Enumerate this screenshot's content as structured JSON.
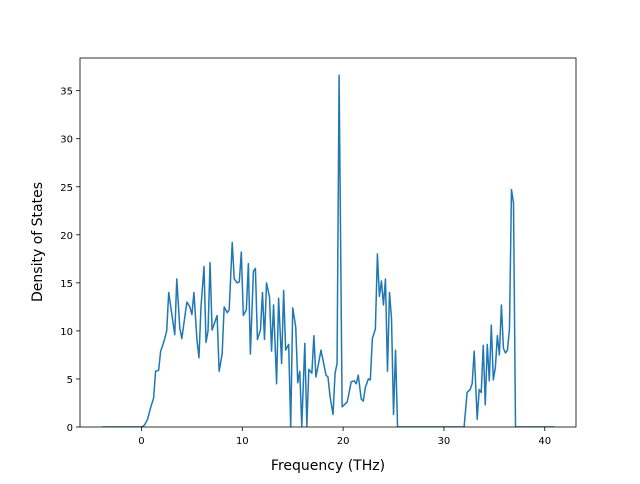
{
  "chart_data": {
    "type": "line",
    "xlabel": "Frequency (THz)",
    "ylabel": "Density of States",
    "x": [
      -3.9,
      0,
      0.3,
      0.6,
      0.9,
      1.2,
      1.4,
      1.7,
      1.9,
      2.2,
      2.5,
      2.7,
      3.0,
      3.3,
      3.5,
      3.8,
      4.0,
      4.3,
      4.5,
      4.8,
      5.0,
      5.2,
      5.5,
      5.7,
      5.9,
      6.2,
      6.4,
      6.6,
      6.8,
      7.0,
      7.3,
      7.5,
      7.7,
      8.0,
      8.2,
      8.5,
      8.7,
      9.0,
      9.2,
      9.5,
      9.7,
      9.9,
      10.1,
      10.4,
      10.6,
      10.8,
      11.1,
      11.3,
      11.5,
      11.8,
      12.0,
      12.2,
      12.4,
      12.7,
      12.9,
      13.1,
      13.4,
      13.6,
      13.9,
      14.1,
      14.3,
      14.6,
      14.8,
      15.0,
      15.3,
      15.5,
      15.7,
      15.9,
      16.2,
      16.4,
      16.6,
      16.9,
      17.1,
      17.3,
      17.6,
      17.8,
      18.0,
      18.3,
      18.5,
      18.7,
      19.0,
      19.2,
      19.4,
      19.6,
      19.9,
      20.1,
      20.4,
      20.6,
      20.8,
      21.1,
      21.3,
      21.5,
      21.8,
      22.0,
      22.2,
      22.5,
      22.7,
      22.9,
      23.2,
      23.4,
      23.6,
      23.8,
      24.0,
      24.2,
      24.4,
      24.6,
      24.8,
      25.0,
      25.2,
      25.4,
      26,
      32,
      32.3,
      32.6,
      32.8,
      33.0,
      33.3,
      33.5,
      33.7,
      33.9,
      34.1,
      34.3,
      34.5,
      34.7,
      34.9,
      35.1,
      35.3,
      35.5,
      35.7,
      35.9,
      36.1,
      36.3,
      36.5,
      36.7,
      36.9,
      37.1,
      41
    ],
    "series": [
      {
        "color": "#1f77b4",
        "values": [
          0,
          0,
          0.2,
          0.8,
          2,
          3,
          5.8,
          5.9,
          7.9,
          8.8,
          10,
          14,
          11.8,
          9.6,
          15.4,
          10.3,
          9.2,
          11.5,
          13,
          12.5,
          11.7,
          14,
          9.1,
          7.2,
          12.5,
          16.7,
          8.8,
          10,
          17.1,
          10.1,
          11,
          11.6,
          5.8,
          7.6,
          12.5,
          11.9,
          12.2,
          19.2,
          15.4,
          15,
          15.1,
          18.2,
          11.6,
          12.2,
          17,
          7.6,
          16.2,
          16.5,
          9.1,
          10.1,
          14,
          9.1,
          15,
          13.5,
          7.9,
          12.7,
          4.5,
          13.4,
          6.6,
          14.2,
          8,
          8.6,
          0,
          12.4,
          10.4,
          4.6,
          5.8,
          0.1,
          8.7,
          0.1,
          6,
          5.6,
          9.5,
          5.2,
          6.8,
          8,
          7,
          5.4,
          5.2,
          3.2,
          1.3,
          5.6,
          6.6,
          36.6,
          2.1,
          2.3,
          2.6,
          3.6,
          4.7,
          4.8,
          4.5,
          5.4,
          2.9,
          2.7,
          4.1,
          5,
          4.9,
          9.2,
          10.2,
          18,
          13.6,
          15.2,
          12.7,
          15.4,
          5.8,
          14,
          11.3,
          1.3,
          8,
          0,
          0,
          0,
          3.6,
          3.9,
          4.5,
          7.9,
          0.8,
          3.9,
          3.6,
          8.5,
          2.3,
          8.6,
          4.8,
          10.6,
          4.9,
          6.2,
          9.5,
          7.5,
          12.7,
          8.2,
          7.7,
          8,
          10.2,
          24.7,
          23.3,
          0,
          0
        ]
      }
    ],
    "xlim": [
      -6.1,
      43.1
    ],
    "ylim": [
      0,
      38.4
    ],
    "xticks": [
      0,
      10,
      20,
      30,
      40
    ],
    "yticks": [
      0,
      5,
      10,
      15,
      20,
      25,
      30,
      35
    ]
  }
}
